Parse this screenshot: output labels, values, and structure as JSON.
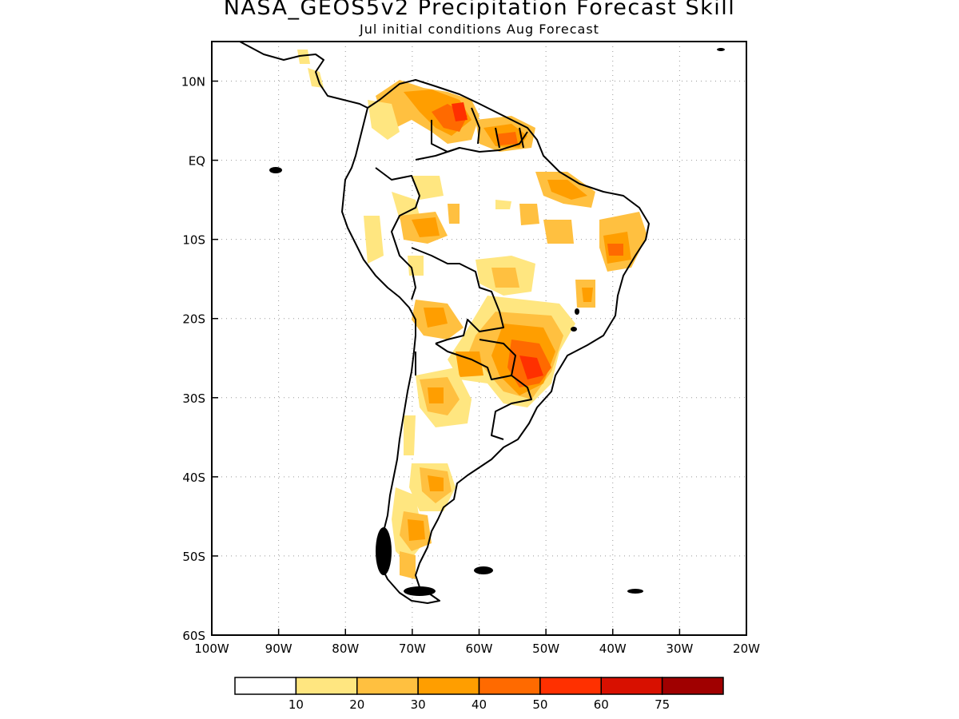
{
  "title": "NASA_GEOS5v2 Precipitation Forecast Skill",
  "subtitle": "Jul initial conditions  Aug Forecast",
  "map": {
    "region": "South America",
    "lon_range": [
      -100,
      -20
    ],
    "lat_range": [
      -60,
      15
    ],
    "grid": "dotted",
    "lon_ticks": [
      "100W",
      "90W",
      "80W",
      "70W",
      "60W",
      "50W",
      "40W",
      "30W",
      "20W"
    ],
    "lat_ticks": [
      "10N",
      "EQ",
      "10S",
      "20S",
      "30S",
      "40S",
      "50S",
      "60S"
    ]
  },
  "colorbar": {
    "labels": [
      "10",
      "20",
      "30",
      "40",
      "50",
      "60",
      "75"
    ],
    "colors": [
      "#ffffff",
      "#ffe680",
      "#ffc040",
      "#ff9e00",
      "#ff6a00",
      "#ff3000",
      "#d81000",
      "#a00000"
    ]
  },
  "skill_areas": [
    {
      "region": "Colombia/Venezuela north",
      "level": 2
    },
    {
      "region": "Guianas",
      "level": 3
    },
    {
      "region": "NE Brazil",
      "level": 3
    },
    {
      "region": "Southern Brazil / Paraguay",
      "level": 4
    },
    {
      "region": "Northern Argentina",
      "level": 2
    },
    {
      "region": "Patagonia",
      "level": 3
    }
  ]
}
